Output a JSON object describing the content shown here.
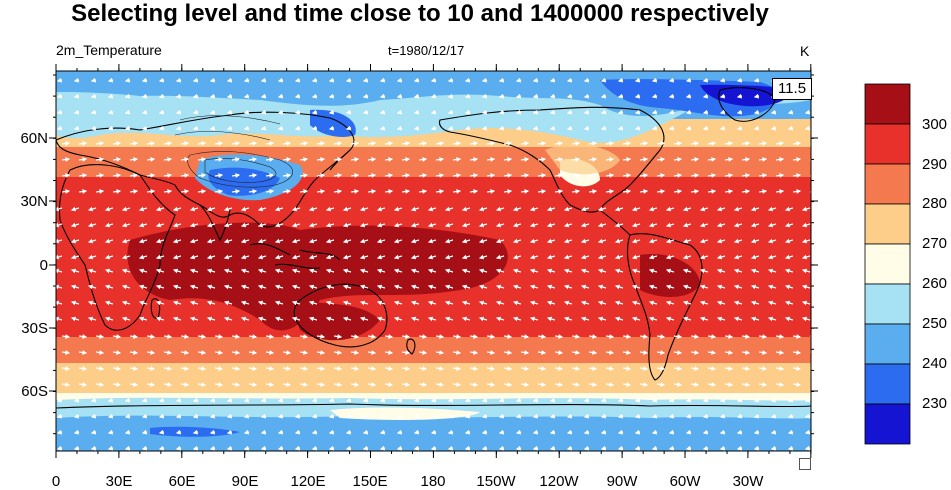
{
  "title": "Selecting level and time close to 10 and 1400000 respectively",
  "variable_label": "2m_Temperature",
  "time_label": "t=1980/12/17",
  "units_label": "K",
  "vector_reference": "11.5",
  "lat_labels": [
    "60N",
    "30N",
    "0",
    "30S",
    "60S"
  ],
  "lon_labels": [
    "0",
    "30E",
    "60E",
    "90E",
    "120E",
    "150E",
    "180",
    "150W",
    "120W",
    "90W",
    "60W",
    "30W"
  ],
  "colorbar": {
    "labels": [
      "300",
      "290",
      "280",
      "270",
      "260",
      "250",
      "240",
      "230"
    ],
    "colors": [
      "#a50f15",
      "#e8312a",
      "#f4794f",
      "#fcce8a",
      "#fffde8",
      "#a6e1f4",
      "#5aaeef",
      "#2b6cf0",
      "#1414d2"
    ]
  },
  "map": {
    "projection": "cylindrical equidistant",
    "lon_range": [
      0,
      360
    ],
    "lat_range": [
      -90,
      90
    ],
    "overlay": "wind vectors"
  }
}
